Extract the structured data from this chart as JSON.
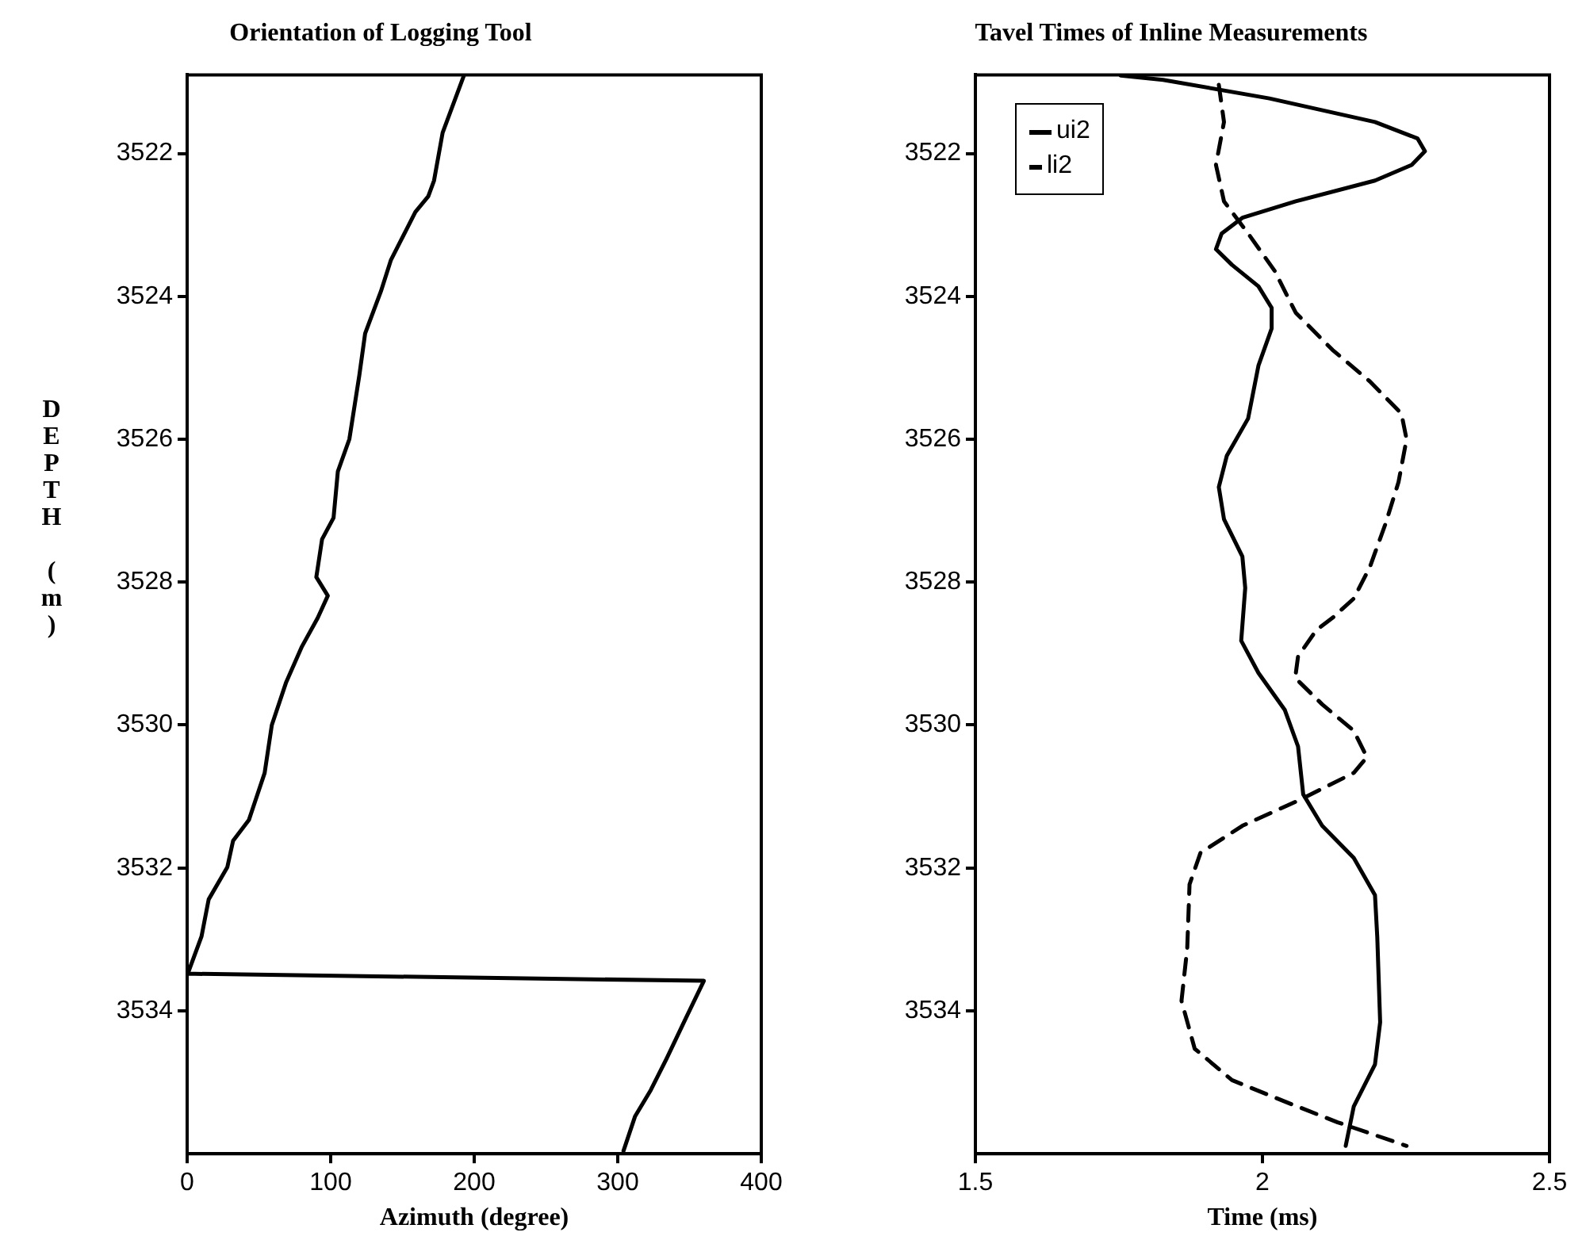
{
  "chart_data": [
    {
      "type": "line",
      "title": "Orientation of Logging Tool",
      "xlabel": "Azimuth (degree)",
      "ylabel": "DEPTH (m)",
      "xlim": [
        0,
        400
      ],
      "xticks": [
        0,
        100,
        200,
        300,
        400
      ],
      "ylim": [
        3536,
        3520.9
      ],
      "yticks": [
        3522,
        3524,
        3526,
        3528,
        3530,
        3532,
        3534
      ],
      "grid": false,
      "marker": "none",
      "series": [
        {
          "color": "#000000",
          "line_style": "solid",
          "x": [
            193,
            178,
            172,
            168,
            159,
            142,
            135,
            124,
            120,
            113,
            105,
            102,
            94,
            90,
            98,
            91,
            80,
            69,
            59,
            54,
            43,
            32,
            28,
            15,
            10,
            1,
            0,
            360,
            348,
            334,
            323,
            312,
            304
          ],
          "values": [
            3520.9,
            3521.71,
            3522.38,
            3522.6,
            3522.82,
            3523.49,
            3523.93,
            3524.52,
            3525.1,
            3526.0,
            3526.45,
            3527.1,
            3527.4,
            3527.93,
            3528.19,
            3528.5,
            3528.9,
            3529.4,
            3530.0,
            3530.67,
            3531.33,
            3531.62,
            3531.99,
            3532.44,
            3532.96,
            3533.45,
            3533.48,
            3533.58,
            3534.08,
            3534.67,
            3535.11,
            3535.48,
            3535.96
          ]
        }
      ]
    },
    {
      "type": "line",
      "title": "Tavel Times of Inline Measurements",
      "xlabel": "Time (ms)",
      "xlim": [
        1.5,
        2.5
      ],
      "xticks": [
        1.5,
        2,
        2.5
      ],
      "ylim": [
        3536,
        3520.9
      ],
      "yticks": [
        3522,
        3524,
        3526,
        3528,
        3530,
        3532,
        3534
      ],
      "grid": false,
      "marker": "none",
      "legend": "top left",
      "series": [
        {
          "name": "ui2",
          "color": "#000000",
          "line_style": "solid",
          "x": [
            1.753,
            1.827,
            2.012,
            2.196,
            2.27,
            2.283,
            2.26,
            2.196,
            2.058,
            1.965,
            1.929,
            1.919,
            1.947,
            1.993,
            2.016,
            2.016,
            1.993,
            1.975,
            1.938,
            1.924,
            1.933,
            1.965,
            1.97,
            1.963,
            1.993,
            2.039,
            2.062,
            2.071,
            2.104,
            2.159,
            2.196,
            2.2,
            2.205,
            2.196,
            2.159,
            2.145
          ],
          "values": [
            3520.91,
            3520.97,
            3521.23,
            3521.56,
            3521.79,
            3521.97,
            3522.16,
            3522.38,
            3522.67,
            3522.9,
            3523.12,
            3523.34,
            3523.56,
            3523.86,
            3524.16,
            3524.45,
            3524.97,
            3525.71,
            3526.23,
            3526.67,
            3527.12,
            3527.64,
            3528.08,
            3528.82,
            3529.27,
            3529.79,
            3530.3,
            3530.97,
            3531.41,
            3531.86,
            3532.38,
            3532.97,
            3534.16,
            3534.75,
            3535.34,
            3535.89
          ]
        },
        {
          "name": "li2",
          "color": "#000000",
          "line_style": "dashed",
          "x": [
            1.924,
            1.933,
            1.919,
            1.933,
            1.975,
            2.021,
            2.058,
            2.122,
            2.187,
            2.242,
            2.251,
            2.237,
            2.214,
            2.187,
            2.159,
            2.122,
            2.094,
            2.062,
            2.057,
            2.104,
            2.159,
            2.182,
            2.159,
            2.067,
            1.965,
            1.892,
            1.873,
            1.869,
            1.859,
            1.882,
            1.947,
            2.039,
            2.131,
            2.251
          ],
          "values": [
            3521.04,
            3521.56,
            3522.16,
            3522.67,
            3523.12,
            3523.64,
            3524.23,
            3524.75,
            3525.19,
            3525.64,
            3526.0,
            3526.6,
            3527.19,
            3527.79,
            3528.23,
            3528.5,
            3528.67,
            3529.04,
            3529.34,
            3529.71,
            3530.08,
            3530.45,
            3530.67,
            3531.04,
            3531.41,
            3531.79,
            3532.23,
            3533.12,
            3533.86,
            3534.53,
            3534.97,
            3535.27,
            3535.56,
            3535.89
          ]
        }
      ]
    }
  ]
}
